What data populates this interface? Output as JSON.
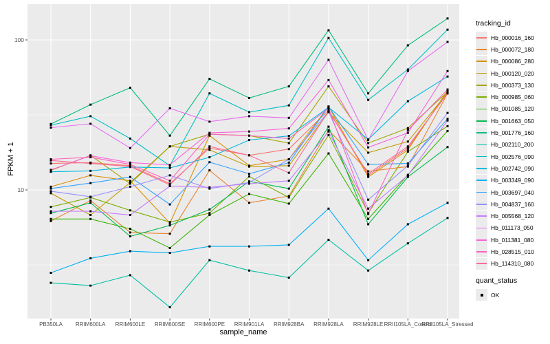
{
  "chart": {
    "y_axis_title": "FPKM + 1",
    "x_axis_title": "sample_name",
    "legend_title": "tracking_id",
    "quant_legend_title": "quant_status",
    "quant_legend_item": "OK"
  },
  "chart_data": {
    "type": "line",
    "title": "",
    "xlabel": "sample_name",
    "ylabel": "FPKM + 1",
    "y_scale": "log10",
    "ylim": [
      1.4,
      175
    ],
    "y_major_gridlines": [
      10,
      100
    ],
    "y_minor_gridlines": [
      3.162,
      31.62
    ],
    "grid": true,
    "panel_color": "#ebebeb",
    "gridline_color": "#ffffff",
    "point_marker": {
      "shape": "square",
      "color": "#000000",
      "label": "OK"
    },
    "legend_position": "right",
    "categories": [
      "PB350LA",
      "RRIM600LA",
      "RRIM600LE",
      "RRIM600SE",
      "RRIM600PE",
      "RRIM901LA",
      "RRIM928BA",
      "RRIM928LA",
      "RRIM928LE",
      "RRII105LA_Control",
      "RRII105LA_Stressed"
    ],
    "series": [
      {
        "name": "Hb_000016_160",
        "color": "#F8766D",
        "values": [
          15.0,
          15.2,
          14.5,
          11.0,
          19.0,
          17.0,
          18.7,
          34.0,
          12.5,
          19.0,
          45.0
        ]
      },
      {
        "name": "Hb_000072_180",
        "color": "#EA8331",
        "values": [
          6.2,
          8.5,
          5.2,
          5.1,
          13.5,
          8.2,
          9.1,
          25.0,
          13.3,
          14.3,
          44.0
        ]
      },
      {
        "name": "Hb_000086_280",
        "color": "#D89000",
        "values": [
          10.5,
          12.5,
          11.5,
          6.0,
          23.0,
          14.5,
          16.0,
          36.0,
          12.2,
          18.5,
          46.0
        ]
      },
      {
        "name": "Hb_000120_020",
        "color": "#C09B00",
        "values": [
          9.5,
          6.8,
          11.2,
          19.5,
          18.5,
          14.3,
          14.5,
          33.0,
          17.7,
          21.0,
          44.5
        ]
      },
      {
        "name": "Hb_000373_130",
        "color": "#A3A500",
        "values": [
          13.5,
          17.0,
          11.0,
          19.5,
          23.5,
          23.0,
          20.5,
          49.0,
          20.5,
          25.8,
          45.0
        ]
      },
      {
        "name": "Hb_000985_060",
        "color": "#7CAE00",
        "values": [
          7.7,
          8.9,
          7.3,
          6.1,
          7.0,
          12.3,
          8.9,
          23.2,
          7.0,
          18.0,
          26.6
        ]
      },
      {
        "name": "Hb_001085_120",
        "color": "#39B600",
        "values": [
          6.4,
          6.4,
          5.5,
          4.1,
          6.8,
          9.4,
          8.1,
          17.5,
          6.4,
          12.6,
          24.7
        ]
      },
      {
        "name": "Hb_001663_050",
        "color": "#00BB4E",
        "values": [
          7.0,
          8.2,
          4.9,
          5.8,
          7.4,
          11.4,
          10.2,
          26.4,
          5.9,
          12.2,
          19.3
        ]
      },
      {
        "name": "Hb_001776_160",
        "color": "#00BF7D",
        "values": [
          27.5,
          37.0,
          48.0,
          23.0,
          55.0,
          41.0,
          49.0,
          116.0,
          44.0,
          92.0,
          139.0
        ]
      },
      {
        "name": "Hb_002110_200",
        "color": "#00C1A3",
        "values": [
          2.4,
          2.3,
          2.7,
          1.65,
          3.4,
          2.9,
          2.6,
          4.65,
          2.9,
          4.4,
          6.5
        ]
      },
      {
        "name": "Hb_002576_090",
        "color": "#00BFC4",
        "values": [
          27.0,
          31.0,
          22.0,
          14.5,
          44.0,
          33.0,
          36.6,
          103.0,
          39.8,
          63.5,
          117.0
        ]
      },
      {
        "name": "Hb_002742_090",
        "color": "#00BAE0",
        "values": [
          13.2,
          13.4,
          14.2,
          14.0,
          16.5,
          21.5,
          22.9,
          35.5,
          21.7,
          39.0,
          57.0
        ]
      },
      {
        "name": "Hb_003349_090",
        "color": "#00B0F6",
        "values": [
          2.8,
          3.5,
          3.9,
          3.8,
          4.2,
          4.2,
          4.3,
          7.5,
          3.4,
          5.9,
          8.2
        ]
      },
      {
        "name": "Hb_003697_040",
        "color": "#35A2FF",
        "values": [
          10.2,
          11.1,
          12.2,
          8.0,
          15.3,
          12.8,
          15.2,
          35.9,
          14.8,
          15.0,
          29.8
        ]
      },
      {
        "name": "Hb_004837_160",
        "color": "#9590FF",
        "values": [
          9.8,
          9.0,
          10.5,
          12.5,
          10.2,
          11.2,
          16.0,
          33.3,
          8.6,
          14.5,
          32.6
        ]
      },
      {
        "name": "Hb_005568_120",
        "color": "#C77CFF",
        "values": [
          7.2,
          7.2,
          6.8,
          10.6,
          10.4,
          11.0,
          11.5,
          24.5,
          7.5,
          12.5,
          29.0
        ]
      },
      {
        "name": "Hb_011173_050",
        "color": "#E76BF3",
        "values": [
          26.0,
          27.6,
          19.0,
          35.0,
          28.5,
          31.0,
          30.2,
          73.6,
          21.5,
          62.0,
          97.0
        ]
      },
      {
        "name": "Hb_011381_080",
        "color": "#FA62DB",
        "values": [
          13.6,
          16.9,
          15.2,
          14.7,
          24.0,
          24.5,
          25.7,
          54.0,
          19.2,
          24.0,
          62.0
        ]
      },
      {
        "name": "Hb_028515_010",
        "color": "#FF62BC",
        "values": [
          16.0,
          16.5,
          14.8,
          11.5,
          23.5,
          23.0,
          22.0,
          35.0,
          6.9,
          25.0,
          46.7
        ]
      },
      {
        "name": "Hb_114310_080",
        "color": "#FF6A98",
        "values": [
          15.7,
          15.0,
          14.3,
          10.8,
          19.5,
          17.0,
          13.0,
          33.5,
          12.8,
          19.5,
          44.0
        ]
      }
    ]
  }
}
